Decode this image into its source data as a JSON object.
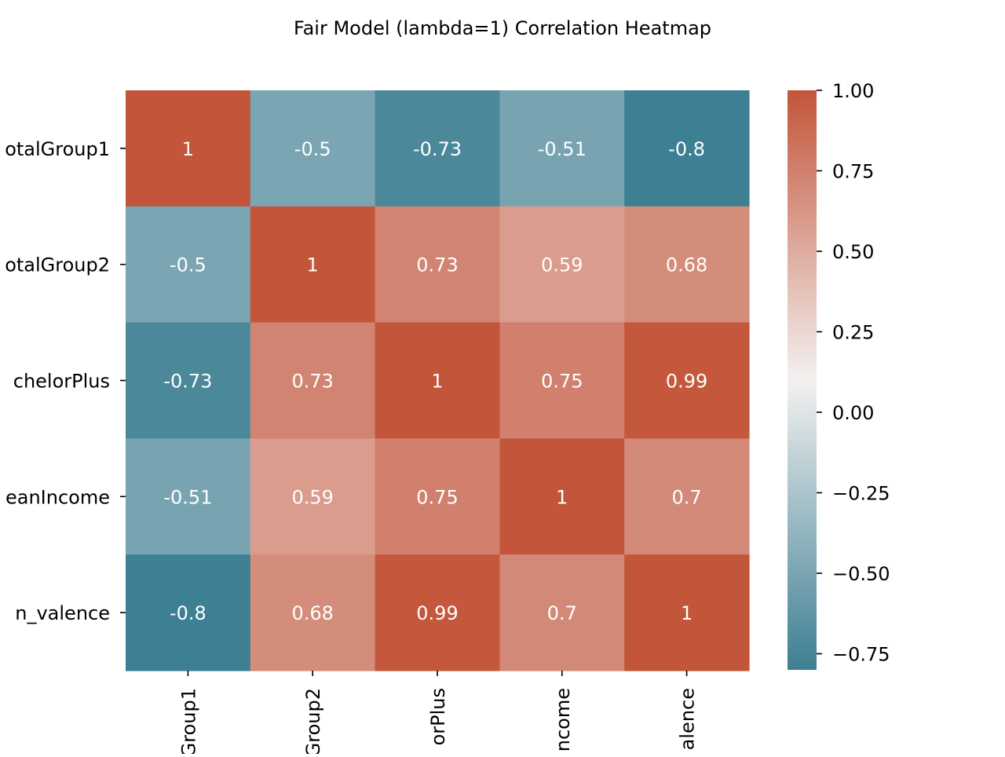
{
  "chart_data": {
    "type": "heatmap",
    "title": "Fair Model (lambda=1) Correlation Heatmap",
    "row_labels": [
      "otalGroup1",
      "otalGroup2",
      "chelorPlus",
      "eanIncome",
      "n_valence"
    ],
    "col_labels": [
      "Group1",
      "Group2",
      "orPlus",
      "ncome",
      "alence"
    ],
    "matrix": [
      [
        1,
        -0.5,
        -0.73,
        -0.51,
        -0.8
      ],
      [
        -0.5,
        1,
        0.73,
        0.59,
        0.68
      ],
      [
        -0.73,
        0.73,
        1,
        0.75,
        0.99
      ],
      [
        -0.51,
        0.59,
        0.75,
        1,
        0.7
      ],
      [
        -0.8,
        0.68,
        0.99,
        0.7,
        1
      ]
    ],
    "cell_labels": [
      [
        "1",
        "-0.5",
        "-0.73",
        "-0.51",
        "-0.8"
      ],
      [
        "-0.5",
        "1",
        "0.73",
        "0.59",
        "0.68"
      ],
      [
        "-0.73",
        "0.73",
        "1",
        "0.75",
        "0.99"
      ],
      [
        "-0.51",
        "0.59",
        "0.75",
        "1",
        "0.7"
      ],
      [
        "-0.8",
        "0.68",
        "0.99",
        "0.7",
        "1"
      ]
    ],
    "colorbar": {
      "vmin": -0.8,
      "vmax": 1.0,
      "ticks": [
        1.0,
        0.75,
        0.5,
        0.25,
        0.0,
        -0.25,
        -0.5,
        -0.75
      ],
      "tick_labels": [
        "1.00",
        "0.75",
        "0.50",
        "0.25",
        "0.00",
        "−0.25",
        "−0.50",
        "−0.75"
      ],
      "color_low": "#3d7f93",
      "color_mid": "#f3f1f0",
      "color_high": "#c3553a"
    },
    "annotation_color": "#ffffff"
  }
}
